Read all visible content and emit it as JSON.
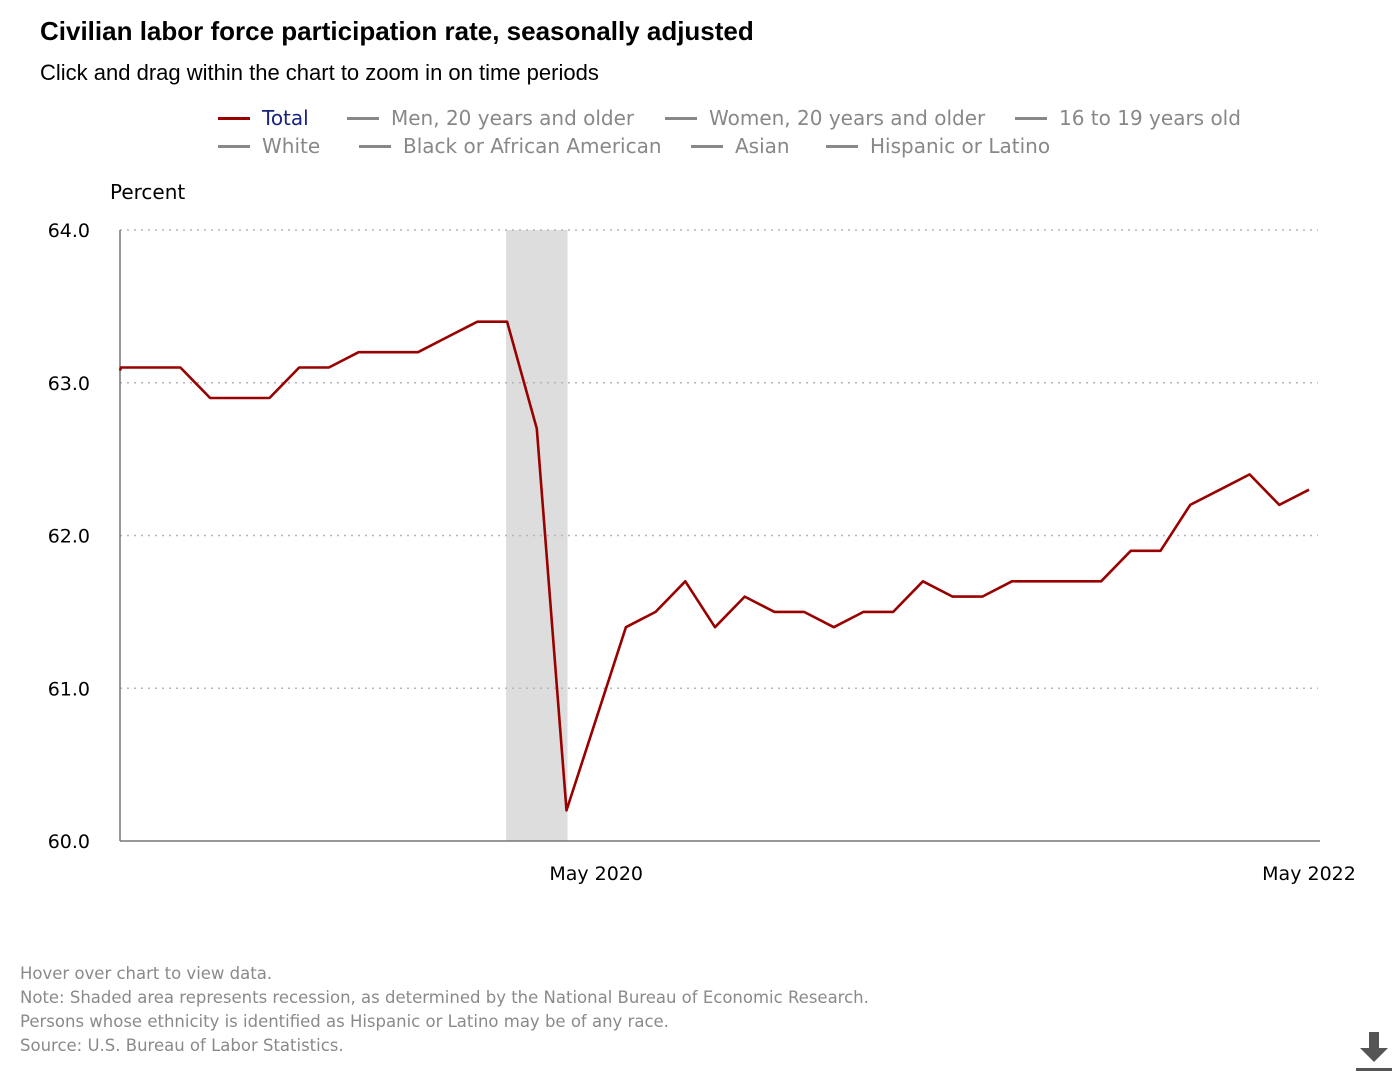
{
  "title": "Civilian labor force participation rate, seasonally adjusted",
  "subtitle": "Click and drag within the chart to zoom in on time periods",
  "legend": [
    {
      "label": "Total",
      "active": true
    },
    {
      "label": "Men, 20 years and older",
      "active": false
    },
    {
      "label": "Women, 20 years and older",
      "active": false
    },
    {
      "label": "16 to 19 years old",
      "active": false
    },
    {
      "label": "White",
      "active": false
    },
    {
      "label": "Black or African American",
      "active": false
    },
    {
      "label": "Asian",
      "active": false
    },
    {
      "label": "Hispanic or Latino",
      "active": false
    }
  ],
  "notes": [
    "Hover over chart to view data.",
    "Note: Shaded area represents recession, as determined by the National Bureau of Economic Research.",
    "Persons whose ethnicity is identified as Hispanic or Latino may be of any race.",
    "Source: U.S. Bureau of Labor Statistics."
  ],
  "download_icon": "download-icon",
  "colors": {
    "series": "#990000",
    "active_legend_text": "#1a237e",
    "inactive": "#888888",
    "recession": "#dddddd"
  },
  "chart_data": {
    "type": "line",
    "ylabel": "Percent",
    "xlabel": "",
    "ylim": [
      60.0,
      64.0
    ],
    "yticks": [
      "64.0",
      "63.0",
      "62.0",
      "61.0",
      "60.0"
    ],
    "xtick_labels": [
      {
        "label": "May 2020",
        "month": "2020-05"
      },
      {
        "label": "May 2022",
        "month": "2022-05"
      }
    ],
    "x_range": [
      "2019-01",
      "2022-06"
    ],
    "grid": "horizontal dotted",
    "recession": {
      "start": "2020-02",
      "end": "2020-04"
    },
    "series": [
      {
        "name": "Total",
        "x": [
          "2019-01",
          "2019-02",
          "2019-03",
          "2019-04",
          "2019-05",
          "2019-06",
          "2019-07",
          "2019-08",
          "2019-09",
          "2019-10",
          "2019-11",
          "2019-12",
          "2020-01",
          "2020-02",
          "2020-03",
          "2020-04",
          "2020-05",
          "2020-06",
          "2020-07",
          "2020-08",
          "2020-09",
          "2020-10",
          "2020-11",
          "2020-12",
          "2021-01",
          "2021-02",
          "2021-03",
          "2021-04",
          "2021-05",
          "2021-06",
          "2021-07",
          "2021-08",
          "2021-09",
          "2021-10",
          "2021-11",
          "2021-12",
          "2022-01",
          "2022-02",
          "2022-03",
          "2022-04",
          "2022-05"
        ],
        "values": [
          63.1,
          63.1,
          63.1,
          62.9,
          62.9,
          62.9,
          63.1,
          63.1,
          63.2,
          63.2,
          63.2,
          63.3,
          63.4,
          63.4,
          62.7,
          60.2,
          60.8,
          61.4,
          61.5,
          61.7,
          61.4,
          61.6,
          61.5,
          61.5,
          61.4,
          61.5,
          61.5,
          61.7,
          61.6,
          61.6,
          61.7,
          61.7,
          61.7,
          61.7,
          61.9,
          61.9,
          62.2,
          62.3,
          62.4,
          62.2,
          62.3
        ]
      }
    ]
  }
}
